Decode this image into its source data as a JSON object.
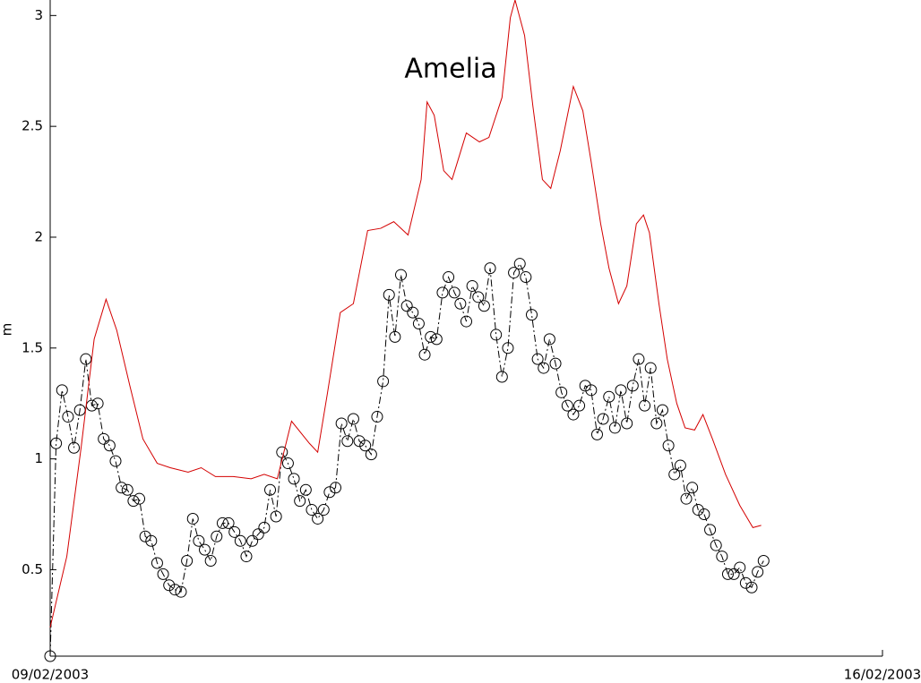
{
  "chart_data": {
    "type": "line",
    "title": "Amelia",
    "y_label": "m",
    "xlim": [
      9,
      16
    ],
    "xticks": [
      {
        "value": 9,
        "label": "09/02/2003"
      },
      {
        "value": 16,
        "label": "16/02/2003"
      }
    ],
    "ylim": [
      0.11,
      3.07
    ],
    "yticks": [
      0.5,
      1,
      1.5,
      2,
      2.5,
      3
    ],
    "grid": false,
    "series": [
      {
        "color": "#000000",
        "linestyle": "dashdot",
        "marker": "o",
        "x": [
          9,
          9.05,
          9.1,
          9.15,
          9.2,
          9.25,
          9.3,
          9.35,
          9.4,
          9.45,
          9.5,
          9.55,
          9.6,
          9.65,
          9.7,
          9.75,
          9.8,
          9.85,
          9.9,
          9.95,
          10,
          10.05,
          10.1,
          10.15,
          10.2,
          10.25,
          10.3,
          10.35,
          10.4,
          10.45,
          10.5,
          10.55,
          10.6,
          10.65,
          10.7,
          10.75,
          10.8,
          10.85,
          10.9,
          10.95,
          11,
          11.05,
          11.1,
          11.15,
          11.2,
          11.25,
          11.3,
          11.35,
          11.4,
          11.45,
          11.5,
          11.55,
          11.6,
          11.65,
          11.7,
          11.75,
          11.8,
          11.85,
          11.9,
          11.95,
          12,
          12.05,
          12.1,
          12.15,
          12.2,
          12.25,
          12.3,
          12.35,
          12.4,
          12.45,
          12.5,
          12.55,
          12.6,
          12.65,
          12.7,
          12.75,
          12.8,
          12.85,
          12.9,
          12.95,
          13,
          13.05,
          13.1,
          13.15,
          13.2,
          13.25,
          13.3,
          13.35,
          13.4,
          13.45,
          13.5,
          13.55,
          13.6,
          13.65,
          13.7,
          13.75,
          13.8,
          13.85,
          13.9,
          13.95,
          14,
          14.05,
          14.1,
          14.15,
          14.2,
          14.25,
          14.3,
          14.35,
          14.4,
          14.45,
          14.5,
          14.55,
          14.6,
          14.65,
          14.7,
          14.75,
          14.8,
          14.85,
          14.9,
          14.95,
          15
        ],
        "values": [
          0.11,
          1.07,
          1.31,
          1.19,
          1.05,
          1.22,
          1.45,
          1.24,
          1.25,
          1.09,
          1.06,
          0.99,
          0.87,
          0.86,
          0.81,
          0.82,
          0.65,
          0.63,
          0.53,
          0.48,
          0.43,
          0.41,
          0.4,
          0.54,
          0.73,
          0.63,
          0.59,
          0.54,
          0.65,
          0.71,
          0.71,
          0.67,
          0.63,
          0.56,
          0.63,
          0.66,
          0.69,
          0.86,
          0.74,
          1.03,
          0.98,
          0.91,
          0.81,
          0.86,
          0.77,
          0.73,
          0.77,
          0.85,
          0.87,
          1.16,
          1.08,
          1.18,
          1.08,
          1.06,
          1.02,
          1.19,
          1.35,
          1.74,
          1.55,
          1.83,
          1.69,
          1.66,
          1.61,
          1.47,
          1.55,
          1.54,
          1.75,
          1.82,
          1.75,
          1.7,
          1.62,
          1.78,
          1.73,
          1.69,
          1.86,
          1.56,
          1.37,
          1.5,
          1.84,
          1.88,
          1.82,
          1.65,
          1.45,
          1.41,
          1.54,
          1.43,
          1.3,
          1.24,
          1.2,
          1.24,
          1.33,
          1.31,
          1.11,
          1.18,
          1.28,
          1.14,
          1.31,
          1.16,
          1.33,
          1.45,
          1.24,
          1.41,
          1.16,
          1.22,
          1.06,
          0.93,
          0.97,
          0.82,
          0.87,
          0.77,
          0.75,
          0.68,
          0.61,
          0.56,
          0.48,
          0.48,
          0.51,
          0.44,
          0.42,
          0.49,
          0.54
        ]
      },
      {
        "color": "#d40000",
        "linestyle": "solid",
        "x": [
          9.0,
          9.14,
          9.26,
          9.37,
          9.47,
          9.56,
          9.67,
          9.78,
          9.9,
          10.01,
          10.16,
          10.27,
          10.39,
          10.54,
          10.69,
          10.8,
          10.91,
          11.03,
          11.18,
          11.25,
          11.33,
          11.44,
          11.55,
          11.67,
          11.78,
          11.89,
          12.01,
          12.12,
          12.17,
          12.23,
          12.31,
          12.38,
          12.5,
          12.61,
          12.69,
          12.8,
          12.87,
          12.91,
          12.99,
          13.06,
          13.14,
          13.21,
          13.29,
          13.4,
          13.48,
          13.55,
          13.63,
          13.7,
          13.78,
          13.85,
          13.93,
          13.99,
          14.04,
          14.12,
          14.19,
          14.27,
          14.34,
          14.42,
          14.49,
          14.57,
          14.68,
          14.8,
          14.91,
          14.98
        ],
        "values": [
          0.24,
          0.56,
          1.05,
          1.54,
          1.72,
          1.58,
          1.33,
          1.09,
          0.98,
          0.96,
          0.94,
          0.96,
          0.92,
          0.92,
          0.91,
          0.93,
          0.91,
          1.17,
          1.07,
          1.03,
          1.29,
          1.66,
          1.7,
          2.03,
          2.04,
          2.07,
          2.01,
          2.26,
          2.61,
          2.55,
          2.3,
          2.26,
          2.47,
          2.43,
          2.45,
          2.63,
          2.99,
          3.07,
          2.91,
          2.59,
          2.26,
          2.22,
          2.39,
          2.68,
          2.57,
          2.34,
          2.06,
          1.86,
          1.7,
          1.78,
          2.06,
          2.1,
          2.02,
          1.7,
          1.45,
          1.25,
          1.14,
          1.13,
          1.2,
          1.09,
          0.93,
          0.79,
          0.69,
          0.7
        ]
      }
    ]
  }
}
